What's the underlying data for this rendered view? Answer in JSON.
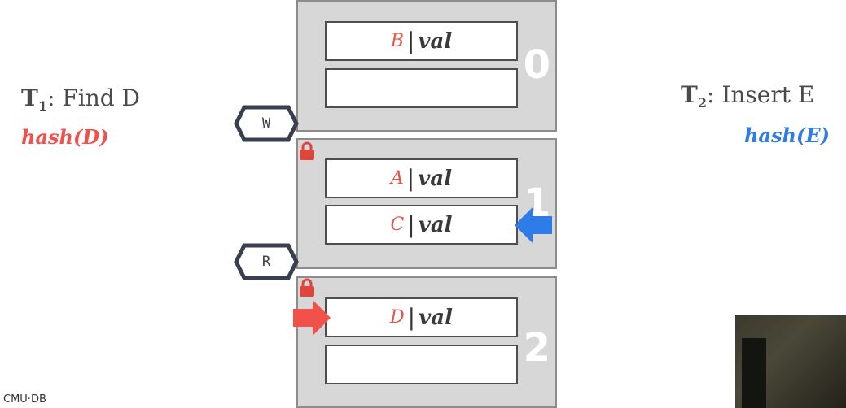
{
  "t1": {
    "prefix": "T",
    "sub": "1",
    "text": ": Find D",
    "hash": "hash(D)"
  },
  "t2": {
    "prefix": "T",
    "sub": "2",
    "text": ": Insert E",
    "hash": "hash(E)"
  },
  "pages": [
    {
      "number": "0",
      "slots": [
        {
          "key": "B",
          "val": "val"
        },
        {
          "key": "",
          "val": ""
        }
      ]
    },
    {
      "number": "1",
      "slots": [
        {
          "key": "A",
          "val": "val"
        },
        {
          "key": "C",
          "val": "val"
        }
      ]
    },
    {
      "number": "2",
      "slots": [
        {
          "key": "D",
          "val": "val"
        },
        {
          "key": "",
          "val": ""
        }
      ]
    }
  ],
  "latches": {
    "write": "W",
    "read": "R"
  },
  "colors": {
    "t1": "#f0524b",
    "t2": "#2f7be8",
    "lock": "#e0453d"
  },
  "footer": "CMU·DB"
}
